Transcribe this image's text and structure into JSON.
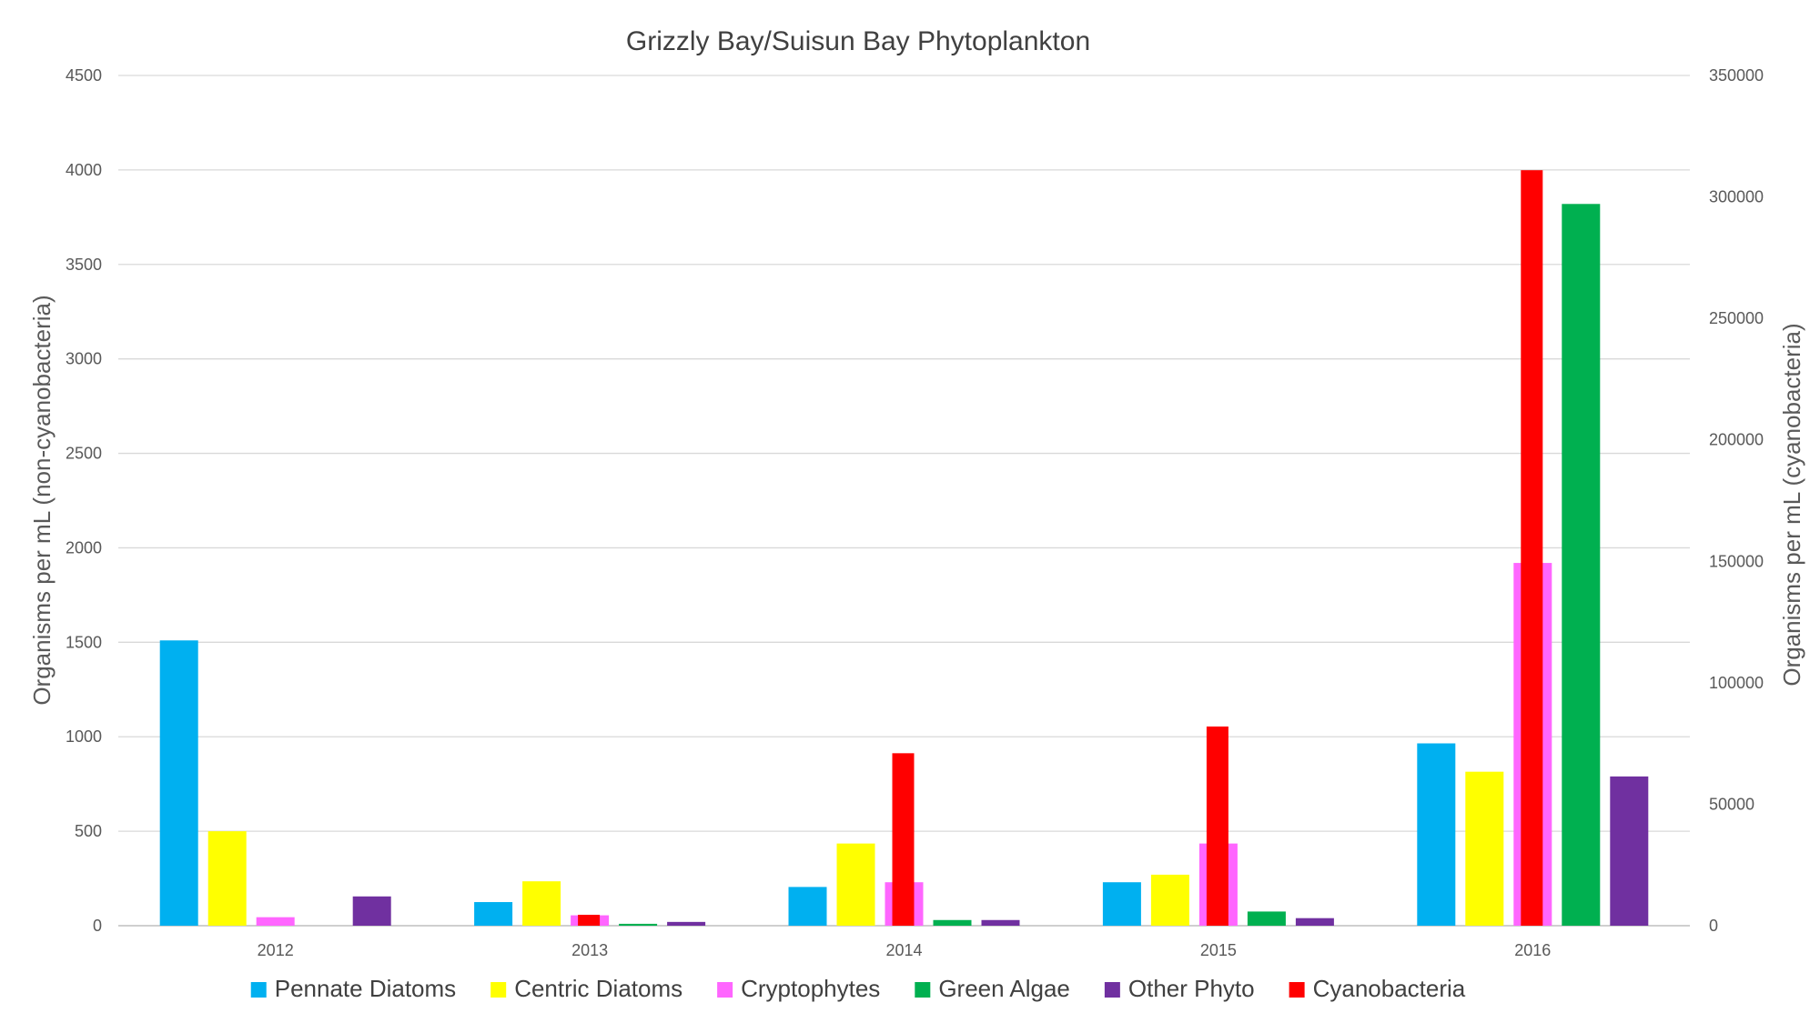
{
  "chart_data": {
    "type": "bar",
    "title": "Grizzly Bay/Suisun Bay Phytoplankton",
    "xlabel": "",
    "ylabel": "Organisms per mL (non-cyanobacteria)",
    "y2label": "Organisms per mL (cyanobacteria)",
    "categories": [
      "2012",
      "2013",
      "2014",
      "2015",
      "2016"
    ],
    "ylim": [
      0,
      4500
    ],
    "y2lim": [
      0,
      350000
    ],
    "yticks": [
      "0",
      "500",
      "1000",
      "1500",
      "2000",
      "2500",
      "3000",
      "3500",
      "4000",
      "4500"
    ],
    "y2ticks": [
      "0",
      "50000",
      "100000",
      "150000",
      "200000",
      "250000",
      "300000",
      "350000"
    ],
    "grid": true,
    "legend_position": "bottom",
    "series": [
      {
        "name": "Pennate Diatoms",
        "color": "#00b0f0",
        "axis": "left",
        "values": [
          1510,
          125,
          205,
          230,
          965
        ]
      },
      {
        "name": "Centric Diatoms",
        "color": "#ffff00",
        "axis": "left",
        "values": [
          500,
          235,
          435,
          270,
          815
        ]
      },
      {
        "name": "Cyanobacteria",
        "color": "#ff0000",
        "axis": "right",
        "values": [
          0,
          4500,
          71000,
          82000,
          311000
        ]
      },
      {
        "name": "Cryptophytes",
        "color": "#ff66ff",
        "axis": "left",
        "values": [
          45,
          55,
          230,
          435,
          1920
        ]
      },
      {
        "name": "Green Algae",
        "color": "#00b050",
        "axis": "left",
        "values": [
          0,
          10,
          30,
          75,
          3820
        ]
      },
      {
        "name": "Other Phyto",
        "color": "#7030a0",
        "axis": "left",
        "values": [
          155,
          20,
          30,
          40,
          790
        ]
      }
    ],
    "legend_order": [
      "Pennate Diatoms",
      "Centric Diatoms",
      "Cryptophytes",
      "Green Algae",
      "Other Phyto",
      "Cyanobacteria"
    ]
  }
}
